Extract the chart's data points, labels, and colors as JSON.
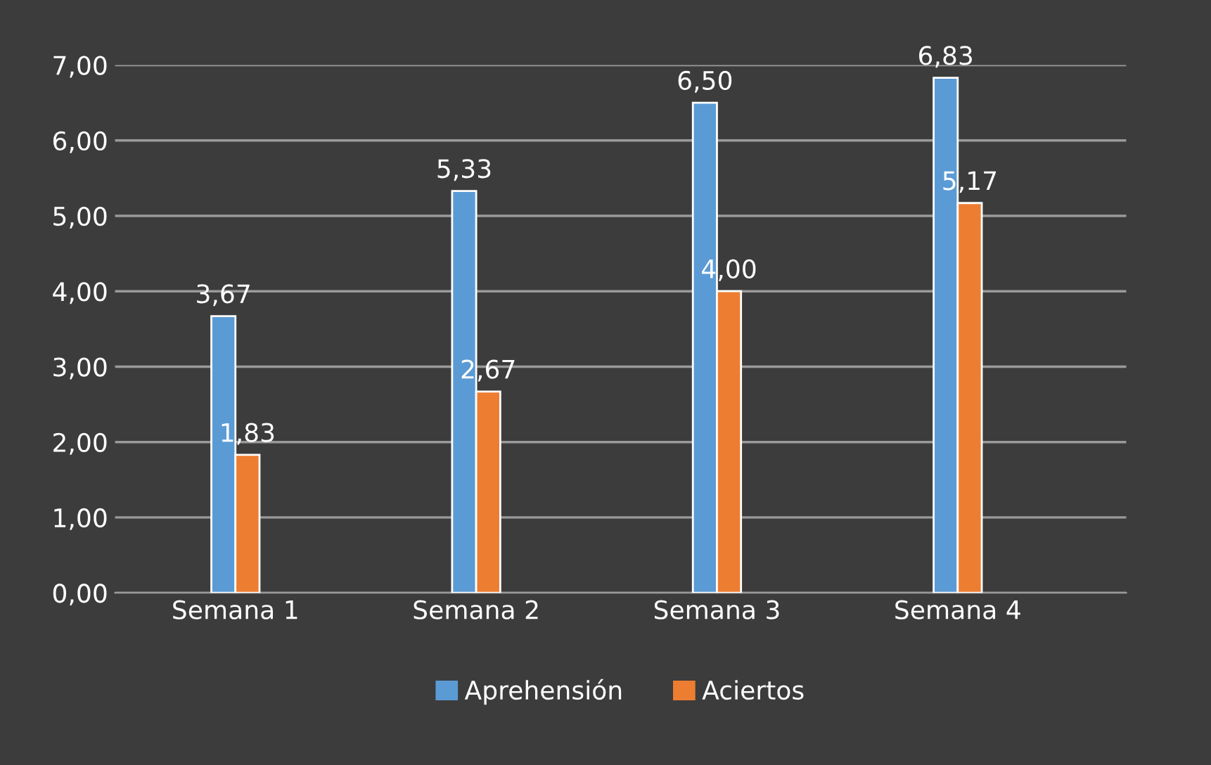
{
  "chart_data": {
    "type": "bar",
    "categories": [
      "Semana 1",
      "Semana 2",
      "Semana 3",
      "Semana 4"
    ],
    "series": [
      {
        "name": "Aprehensión",
        "color": "#5b9bd5",
        "values": [
          3.67,
          5.33,
          6.5,
          6.83
        ],
        "value_labels": [
          "3,67",
          "5,33",
          "6,50",
          "6,83"
        ]
      },
      {
        "name": "Aciertos",
        "color": "#ed7d31",
        "values": [
          1.83,
          2.67,
          4.0,
          5.17
        ],
        "value_labels": [
          "1,83",
          "2,67",
          "4,00",
          "5,17"
        ]
      }
    ],
    "ylim": [
      0,
      7
    ],
    "yticks": [
      {
        "value": 0,
        "label": "0,00"
      },
      {
        "value": 1,
        "label": "1,00"
      },
      {
        "value": 2,
        "label": "2,00"
      },
      {
        "value": 3,
        "label": "3,00"
      },
      {
        "value": 4,
        "label": "4,00"
      },
      {
        "value": 5,
        "label": "5,00"
      },
      {
        "value": 6,
        "label": "6,00"
      },
      {
        "value": 7,
        "label": "7,00"
      }
    ],
    "grid": "y",
    "legend": "bottom"
  }
}
